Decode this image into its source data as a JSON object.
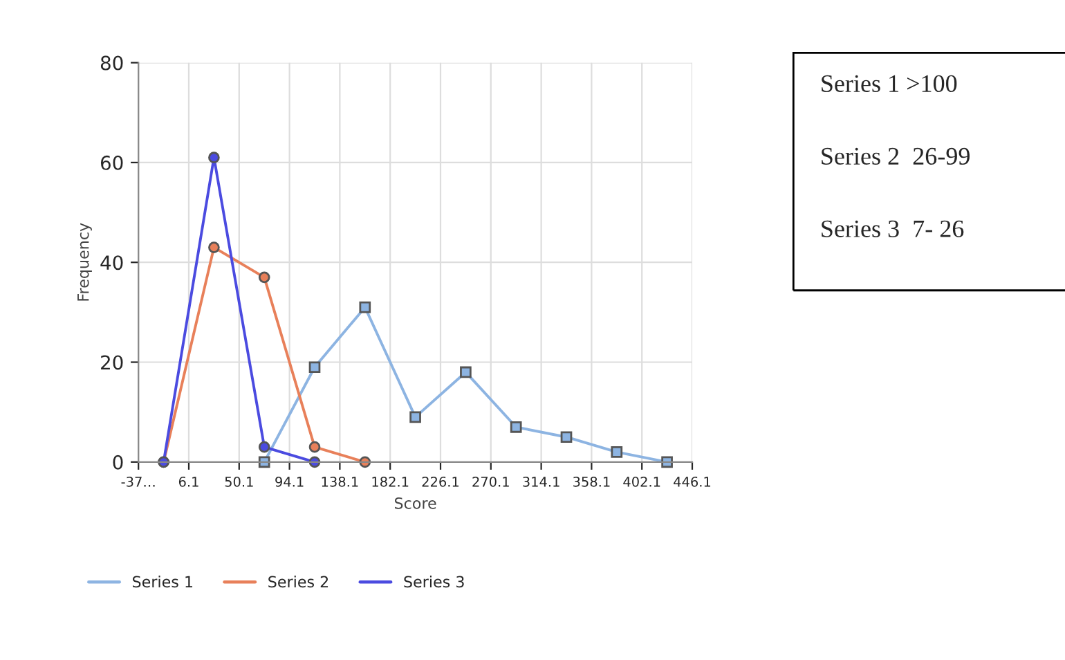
{
  "chart_data": {
    "type": "line",
    "xlabel": "Score",
    "ylabel": "Frequency",
    "xlim": [
      -37.9,
      446.1
    ],
    "xticks": [
      {
        "value": -37.9,
        "label": "-37…"
      },
      6.1,
      50.1,
      94.1,
      138.1,
      182.1,
      226.1,
      270.1,
      314.1,
      358.1,
      402.1,
      446.1
    ],
    "ylim": [
      0,
      80
    ],
    "yticks": [
      0,
      20,
      40,
      60,
      80
    ],
    "grid": true,
    "legend": "bottom",
    "series": [
      {
        "name": "Series 1",
        "color": "#8db4e2",
        "marker": "square",
        "x": [
          72.1,
          116.1,
          160.1,
          204.1,
          248.1,
          292.1,
          336.1,
          380.1,
          424.1
        ],
        "values": [
          0,
          19,
          31,
          9,
          18,
          7,
          5,
          2,
          0
        ]
      },
      {
        "name": "Series 2",
        "color": "#e8805a",
        "marker": "circle",
        "x": [
          -15.9,
          28.1,
          72.1,
          116.1,
          160.1
        ],
        "values": [
          0,
          43,
          37,
          3,
          0
        ]
      },
      {
        "name": "Series 3",
        "color": "#4b4be0",
        "marker": "circle",
        "x": [
          -15.9,
          28.1,
          72.1,
          116.1
        ],
        "values": [
          0,
          61,
          3,
          0
        ]
      }
    ],
    "annotations": [
      "Series 1 >100",
      "Series 2  26-99",
      "Series 3  7- 26"
    ]
  }
}
